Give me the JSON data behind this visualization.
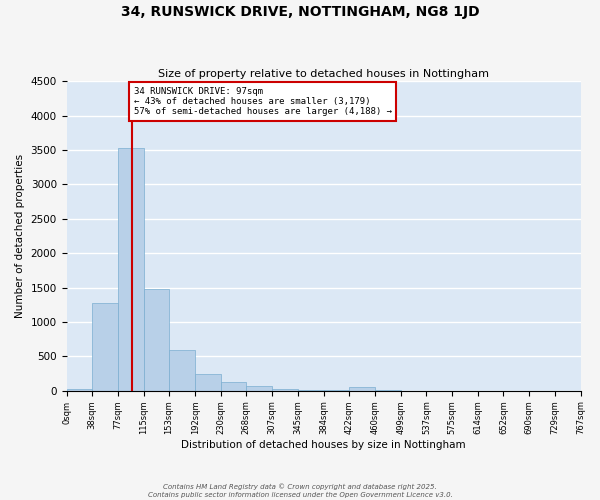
{
  "title": "34, RUNSWICK DRIVE, NOTTINGHAM, NG8 1JD",
  "subtitle": "Size of property relative to detached houses in Nottingham",
  "xlabel": "Distribution of detached houses by size in Nottingham",
  "ylabel": "Number of detached properties",
  "bar_color": "#b8d0e8",
  "bar_edge_color": "#7aaed0",
  "background_color": "#dce8f5",
  "grid_color": "#ffffff",
  "fig_background": "#f5f5f5",
  "bins": [
    0,
    38,
    77,
    115,
    153,
    192,
    230,
    268,
    307,
    345,
    384,
    422,
    460,
    499,
    537,
    575,
    614,
    652,
    690,
    729,
    767
  ],
  "bin_labels": [
    "0sqm",
    "38sqm",
    "77sqm",
    "115sqm",
    "153sqm",
    "192sqm",
    "230sqm",
    "268sqm",
    "307sqm",
    "345sqm",
    "384sqm",
    "422sqm",
    "460sqm",
    "499sqm",
    "537sqm",
    "575sqm",
    "614sqm",
    "652sqm",
    "690sqm",
    "729sqm",
    "767sqm"
  ],
  "bar_heights": [
    30,
    1270,
    3530,
    1480,
    590,
    250,
    130,
    70,
    30,
    10,
    5,
    50,
    5,
    0,
    0,
    0,
    0,
    0,
    0,
    0
  ],
  "ylim": [
    0,
    4500
  ],
  "yticks": [
    0,
    500,
    1000,
    1500,
    2000,
    2500,
    3000,
    3500,
    4000,
    4500
  ],
  "property_size": 97,
  "vline_color": "#cc0000",
  "annotation_title": "34 RUNSWICK DRIVE: 97sqm",
  "annotation_line1": "← 43% of detached houses are smaller (3,179)",
  "annotation_line2": "57% of semi-detached houses are larger (4,188) →",
  "annotation_box_color": "#ffffff",
  "annotation_border_color": "#cc0000",
  "footer_line1": "Contains HM Land Registry data © Crown copyright and database right 2025.",
  "footer_line2": "Contains public sector information licensed under the Open Government Licence v3.0."
}
